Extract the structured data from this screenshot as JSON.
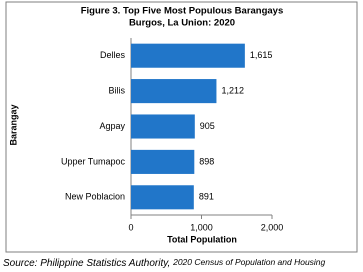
{
  "chart_data": {
    "type": "barh",
    "title": "Figure 3. Top Five Most Populous Barangays",
    "subtitle": "Burgos, La Union: 2020",
    "x_label": "Total Population",
    "y_label": "Barangay",
    "categories": [
      "Delles",
      "Bilis",
      "Agpay",
      "Upper Tumapoc",
      "New Poblacion"
    ],
    "values": [
      1615,
      1212,
      905,
      898,
      891
    ],
    "value_labels": [
      "1,615",
      "1,212",
      "905",
      "898",
      "891"
    ],
    "color": "#2176c9",
    "xlim": [
      0,
      2000
    ],
    "xticks": [
      0,
      {
        "value": 1000,
        "label": "1,000"
      },
      {
        "value": 2000,
        "label": "2,000"
      }
    ],
    "grid": false
  },
  "source": {
    "prefix": "Source: Philippine Statistics Authority,",
    "detail": "2020 Census of Population and Housing"
  }
}
